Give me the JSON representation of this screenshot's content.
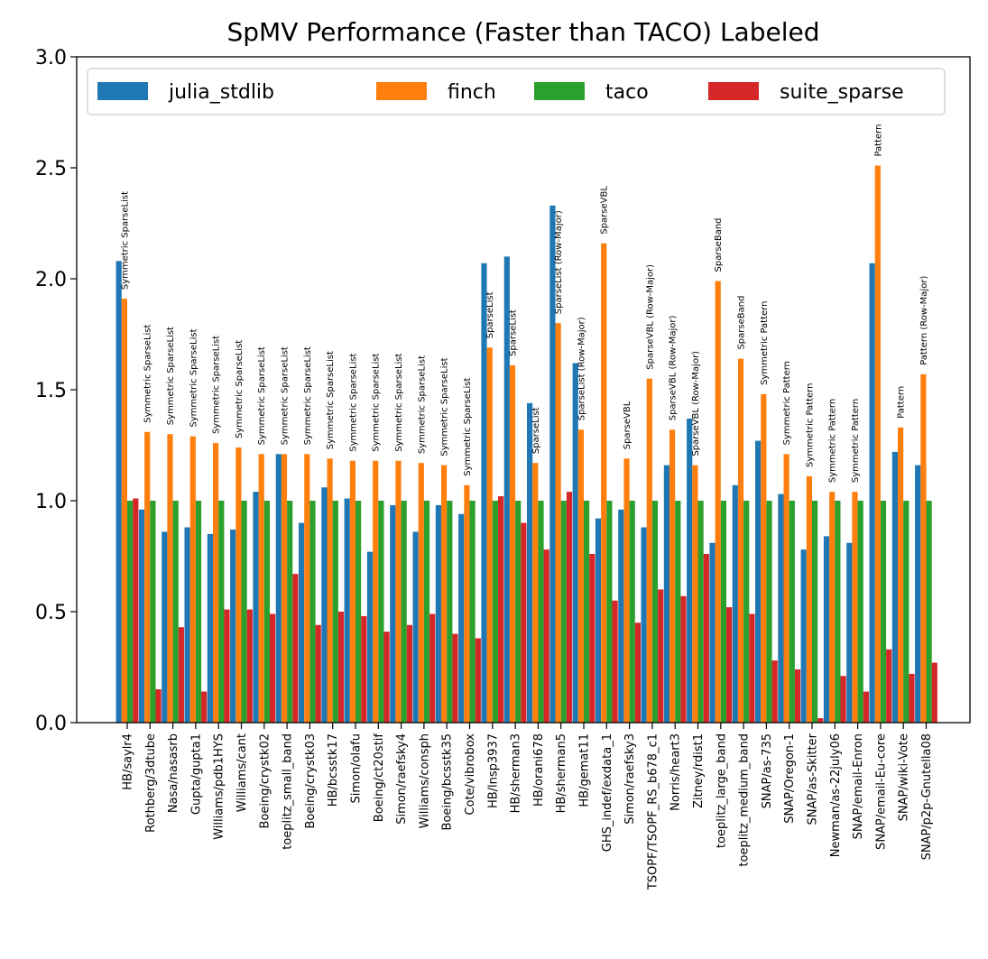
{
  "colors": {
    "julia_stdlib": "#1f77b4",
    "finch": "#ff7f0e",
    "taco": "#2ca02c",
    "suite_sparse": "#d62728"
  },
  "chart_data": {
    "type": "bar",
    "title": "SpMV Performance (Faster than TACO) Labeled",
    "xlabel": "",
    "ylabel": "",
    "ylim": [
      0,
      3.0
    ],
    "yticks": [
      "0.0",
      "0.5",
      "1.0",
      "1.5",
      "2.0",
      "2.5",
      "3.0"
    ],
    "grid": false,
    "legend_position": "top",
    "categories": [
      "HB/saylr4",
      "Rothberg/3dtube",
      "Nasa/nasasrb",
      "Gupta/gupta1",
      "Williams/pdb1HYS",
      "Williams/cant",
      "Boeing/crystk02",
      "toeplitz_small_band",
      "Boeing/crystk03",
      "HB/bcsstk17",
      "Simon/olafu",
      "Boeing/ct20stif",
      "Simon/raefsky4",
      "Williams/consph",
      "Boeing/bcsstk35",
      "Cote/vibrobox",
      "HB/lnsp3937",
      "HB/sherman3",
      "HB/orani678",
      "HB/sherman5",
      "HB/gemat11",
      "GHS_indef/exdata_1",
      "Simon/raefsky3",
      "TSOPF/TSOPF_RS_b678_c1",
      "Norris/heart3",
      "Zitney/rdist1",
      "toeplitz_large_band",
      "toeplitz_medium_band",
      "SNAP/as-735",
      "SNAP/Oregon-1",
      "SNAP/as-Skitter",
      "Newman/as-22july06",
      "SNAP/email-Enron",
      "SNAP/email-Eu-core",
      "SNAP/wiki-Vote",
      "SNAP/p2p-Gnutella08"
    ],
    "series": [
      {
        "name": "julia_stdlib",
        "values": [
          2.08,
          0.96,
          0.86,
          0.88,
          0.85,
          0.87,
          1.04,
          1.21,
          0.9,
          1.06,
          1.01,
          0.77,
          0.98,
          0.86,
          0.98,
          0.94,
          2.07,
          2.1,
          1.44,
          2.33,
          1.62,
          0.92,
          0.96,
          0.88,
          1.16,
          1.37,
          0.81,
          1.07,
          1.27,
          1.03,
          0.78,
          0.84,
          0.81,
          2.07,
          1.22,
          1.16
        ]
      },
      {
        "name": "finch",
        "values": [
          1.91,
          1.31,
          1.3,
          1.29,
          1.26,
          1.24,
          1.21,
          1.21,
          1.21,
          1.19,
          1.18,
          1.18,
          1.18,
          1.17,
          1.16,
          1.07,
          1.69,
          1.61,
          1.17,
          1.8,
          1.32,
          2.16,
          1.19,
          1.55,
          1.32,
          1.16,
          1.99,
          1.64,
          1.48,
          1.21,
          1.11,
          1.04,
          1.04,
          2.51,
          1.33,
          1.57
        ]
      },
      {
        "name": "taco",
        "values": [
          1.0,
          1.0,
          1.0,
          1.0,
          1.0,
          1.0,
          1.0,
          1.0,
          1.0,
          1.0,
          1.0,
          1.0,
          1.0,
          1.0,
          1.0,
          1.0,
          1.0,
          1.0,
          1.0,
          1.0,
          1.0,
          1.0,
          1.0,
          1.0,
          1.0,
          1.0,
          1.0,
          1.0,
          1.0,
          1.0,
          1.0,
          1.0,
          1.0,
          1.0,
          1.0,
          1.0
        ]
      },
      {
        "name": "suite_sparse",
        "values": [
          1.01,
          0.15,
          0.43,
          0.14,
          0.51,
          0.51,
          0.49,
          0.67,
          0.44,
          0.5,
          0.48,
          0.41,
          0.44,
          0.49,
          0.4,
          0.38,
          1.02,
          0.9,
          0.78,
          1.04,
          0.76,
          0.55,
          0.45,
          0.6,
          0.57,
          0.76,
          0.52,
          0.49,
          0.28,
          0.24,
          0.02,
          0.21,
          0.14,
          0.33,
          0.22,
          0.27
        ]
      }
    ],
    "bar_labels": [
      "Symmetric SparseList",
      "Symmetric SparseList",
      "Symmetric SparseList",
      "Symmetric SparseList",
      "Symmetric SparseList",
      "Symmetric SparseList",
      "Symmetric SparseList",
      "Symmetric SparseList",
      "Symmetric SparseList",
      "Symmetric SparseList",
      "Symmetric SparseList",
      "Symmetric SparseList",
      "Symmetric SparseList",
      "Symmetric SparseList",
      "Symmetric SparseList",
      "Symmetric SparseList",
      "SparseList",
      "SparseList",
      "SparseList",
      "SparseList (Row-Major)",
      "SparseList (Row-Major)",
      "SparseVBL",
      "SparseVBL",
      "SparseVBL (Row-Major)",
      "SparseVBL (Row-Major)",
      "SparseVBL (Row-Major)",
      "SparseBand",
      "SparseBand",
      "Symmetric Pattern",
      "Symmetric Pattern",
      "Symmetric Pattern",
      "Symmetric Pattern",
      "Symmetric Pattern",
      "Pattern",
      "Pattern",
      "Pattern (Row-Major)"
    ]
  }
}
